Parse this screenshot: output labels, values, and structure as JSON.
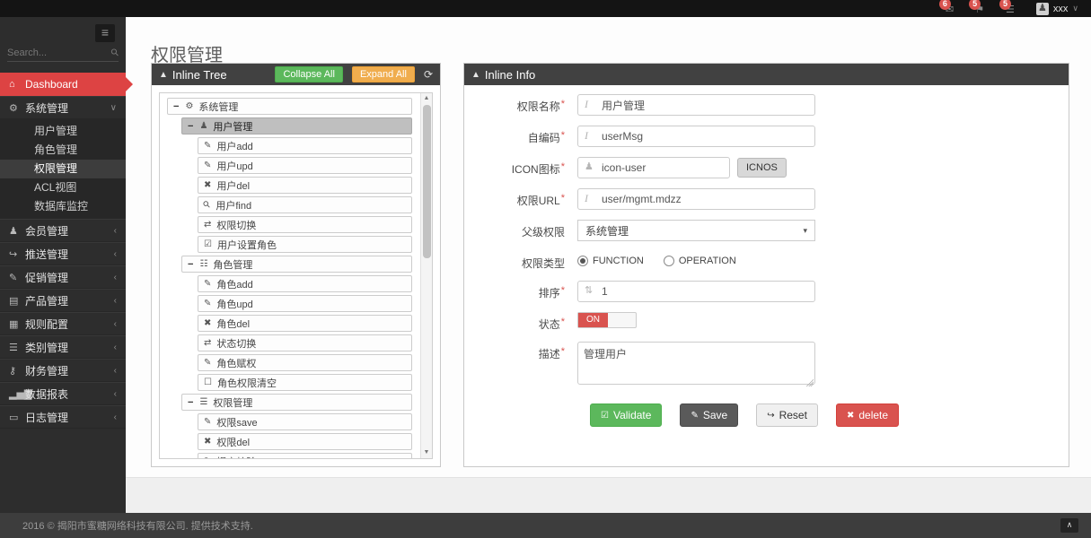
{
  "topbar": {
    "notifications": [
      {
        "icon": "envelope-icon",
        "count": "6"
      },
      {
        "icon": "flag-icon",
        "count": "5"
      },
      {
        "icon": "tasks-icon",
        "count": "5"
      }
    ],
    "user": {
      "name": "xxx"
    }
  },
  "sidebar": {
    "search_placeholder": "Search...",
    "items": [
      {
        "label": "Dashboard",
        "icon": "home-icon",
        "active": true,
        "has_children": false
      },
      {
        "label": "系统管理",
        "icon": "gears-icon",
        "expanded": true,
        "has_children": true,
        "children": [
          "用户管理",
          "角色管理",
          "权限管理",
          "ACL视图",
          "数据库监控"
        ],
        "active_child": "权限管理"
      },
      {
        "label": "会员管理",
        "icon": "user-icon",
        "has_children": true
      },
      {
        "label": "推送管理",
        "icon": "share-icon",
        "has_children": true
      },
      {
        "label": "促销管理",
        "icon": "pencil-icon",
        "has_children": true
      },
      {
        "label": "产品管理",
        "icon": "book-icon",
        "has_children": true
      },
      {
        "label": "规则配置",
        "icon": "newspaper-icon",
        "has_children": true
      },
      {
        "label": "类别管理",
        "icon": "list-icon",
        "has_children": true
      },
      {
        "label": "财务管理",
        "icon": "key-icon",
        "has_children": true
      },
      {
        "label": "数据报表",
        "icon": "chart-icon",
        "has_children": true
      },
      {
        "label": "日志管理",
        "icon": "folder-icon",
        "has_children": true
      }
    ]
  },
  "page": {
    "title": "权限管理"
  },
  "tree_panel": {
    "title": "Inline Tree",
    "collapse_all_label": "Collapse All",
    "expand_all_label": "Expand All",
    "nodes": [
      {
        "label": "系统管理",
        "level": 0,
        "toggle": "minus",
        "icon": "gears-icon"
      },
      {
        "label": "用户管理",
        "level": 1,
        "toggle": "minus",
        "icon": "user-icon",
        "selected": true
      },
      {
        "label": "用户add",
        "level": 2,
        "icon": "pencil-icon"
      },
      {
        "label": "用户upd",
        "level": 2,
        "icon": "edit-icon"
      },
      {
        "label": "用户del",
        "level": 2,
        "icon": "close-icon"
      },
      {
        "label": "用户find",
        "level": 2,
        "icon": "search-icon"
      },
      {
        "label": "权限切换",
        "level": 2,
        "icon": "retweet-icon"
      },
      {
        "label": "用户设置角色",
        "level": 2,
        "icon": "check-square-icon"
      },
      {
        "label": "角色管理",
        "level": 1,
        "toggle": "minus",
        "icon": "sitemap-icon"
      },
      {
        "label": "角色add",
        "level": 2,
        "icon": "pencil-icon"
      },
      {
        "label": "角色upd",
        "level": 2,
        "icon": "edit-icon"
      },
      {
        "label": "角色del",
        "level": 2,
        "icon": "close-icon"
      },
      {
        "label": "状态切换",
        "level": 2,
        "icon": "retweet-icon"
      },
      {
        "label": "角色赋权",
        "level": 2,
        "icon": "pencil-icon"
      },
      {
        "label": "角色权限清空",
        "level": 2,
        "icon": "square-icon"
      },
      {
        "label": "权限管理",
        "level": 1,
        "toggle": "minus",
        "icon": "list-icon"
      },
      {
        "label": "权限save",
        "level": 2,
        "icon": "pencil-icon"
      },
      {
        "label": "权限del",
        "level": 2,
        "icon": "close-icon"
      },
      {
        "label": "提交校验",
        "level": 2,
        "icon": "edit-icon"
      }
    ]
  },
  "info_panel": {
    "title": "Inline Info",
    "required_marker": "*",
    "fields": {
      "name": {
        "label": "权限名称",
        "value": "用户管理"
      },
      "code": {
        "label": "自编码",
        "value": "userMsg"
      },
      "icon": {
        "label": "ICON图标",
        "value": "icon-user",
        "button_label": "ICNOS"
      },
      "url": {
        "label": "权限URL",
        "value": "user/mgmt.mdzz"
      },
      "parent": {
        "label": "父级权限",
        "value": "系统管理"
      },
      "type": {
        "label": "权限类型",
        "options": [
          "FUNCTION",
          "OPERATION"
        ],
        "selected": "FUNCTION"
      },
      "sort": {
        "label": "排序",
        "value": "1"
      },
      "status": {
        "label": "状态",
        "value": "ON"
      },
      "desc": {
        "label": "描述",
        "value": "管理用户"
      }
    },
    "buttons": [
      {
        "label": "Validate",
        "style": "green",
        "icon": "check-square-icon"
      },
      {
        "label": "Save",
        "style": "dark",
        "icon": "pencil-icon"
      },
      {
        "label": "Reset",
        "style": "light",
        "icon": "reply-icon"
      },
      {
        "label": "delete",
        "style": "red",
        "icon": "close-icon"
      }
    ]
  },
  "footer": {
    "text": "2016 © 揭阳市蜜糖网络科技有限公司. 提供技术支持."
  },
  "colors": {
    "accent_red": "#dd4343",
    "badge_red": "#d9534f",
    "green": "#5cb85c",
    "orange": "#f0ad4e",
    "dark_header": "#414141"
  }
}
